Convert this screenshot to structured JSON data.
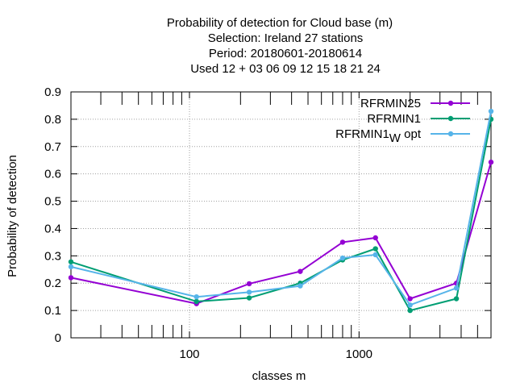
{
  "chart_data": {
    "type": "line",
    "title_lines": [
      "Probability of detection  for Cloud base (m)",
      "Selection: Ireland      27 stations",
      "Period: 20180601-20180614",
      "Used  12 + 03 06 09 12 15 18 21 24"
    ],
    "xlabel": "classes m",
    "ylabel": "Probability of detection",
    "x_scale": "log",
    "xlim": [
      20,
      6000
    ],
    "ylim": [
      0,
      0.9
    ],
    "x_tick_labels": [
      "100",
      "1000"
    ],
    "y_tick_labels": [
      "0",
      "0.1",
      "0.2",
      "0.3",
      "0.4",
      "0.5",
      "0.6",
      "0.7",
      "0.8",
      "0.9"
    ],
    "grid": true,
    "legend_position": "top-right",
    "x": [
      20,
      110,
      225,
      450,
      800,
      1250,
      2000,
      3750,
      6000
    ],
    "series": [
      {
        "name": "RFRMIN25",
        "color": "#9400d3",
        "values": [
          0.22,
          0.125,
          0.198,
          0.243,
          0.35,
          0.366,
          0.143,
          0.2,
          0.643
        ]
      },
      {
        "name": "RFRMIN1",
        "color": "#009e73",
        "values": [
          0.278,
          0.133,
          0.146,
          0.2,
          0.285,
          0.326,
          0.1,
          0.143,
          0.8
        ]
      },
      {
        "name_main": "RFRMIN1",
        "name_sub": "W",
        "name_tail": "opt",
        "color": "#56b4e9",
        "values": [
          0.26,
          0.15,
          0.167,
          0.19,
          0.292,
          0.304,
          0.12,
          0.182,
          0.829
        ]
      }
    ]
  }
}
